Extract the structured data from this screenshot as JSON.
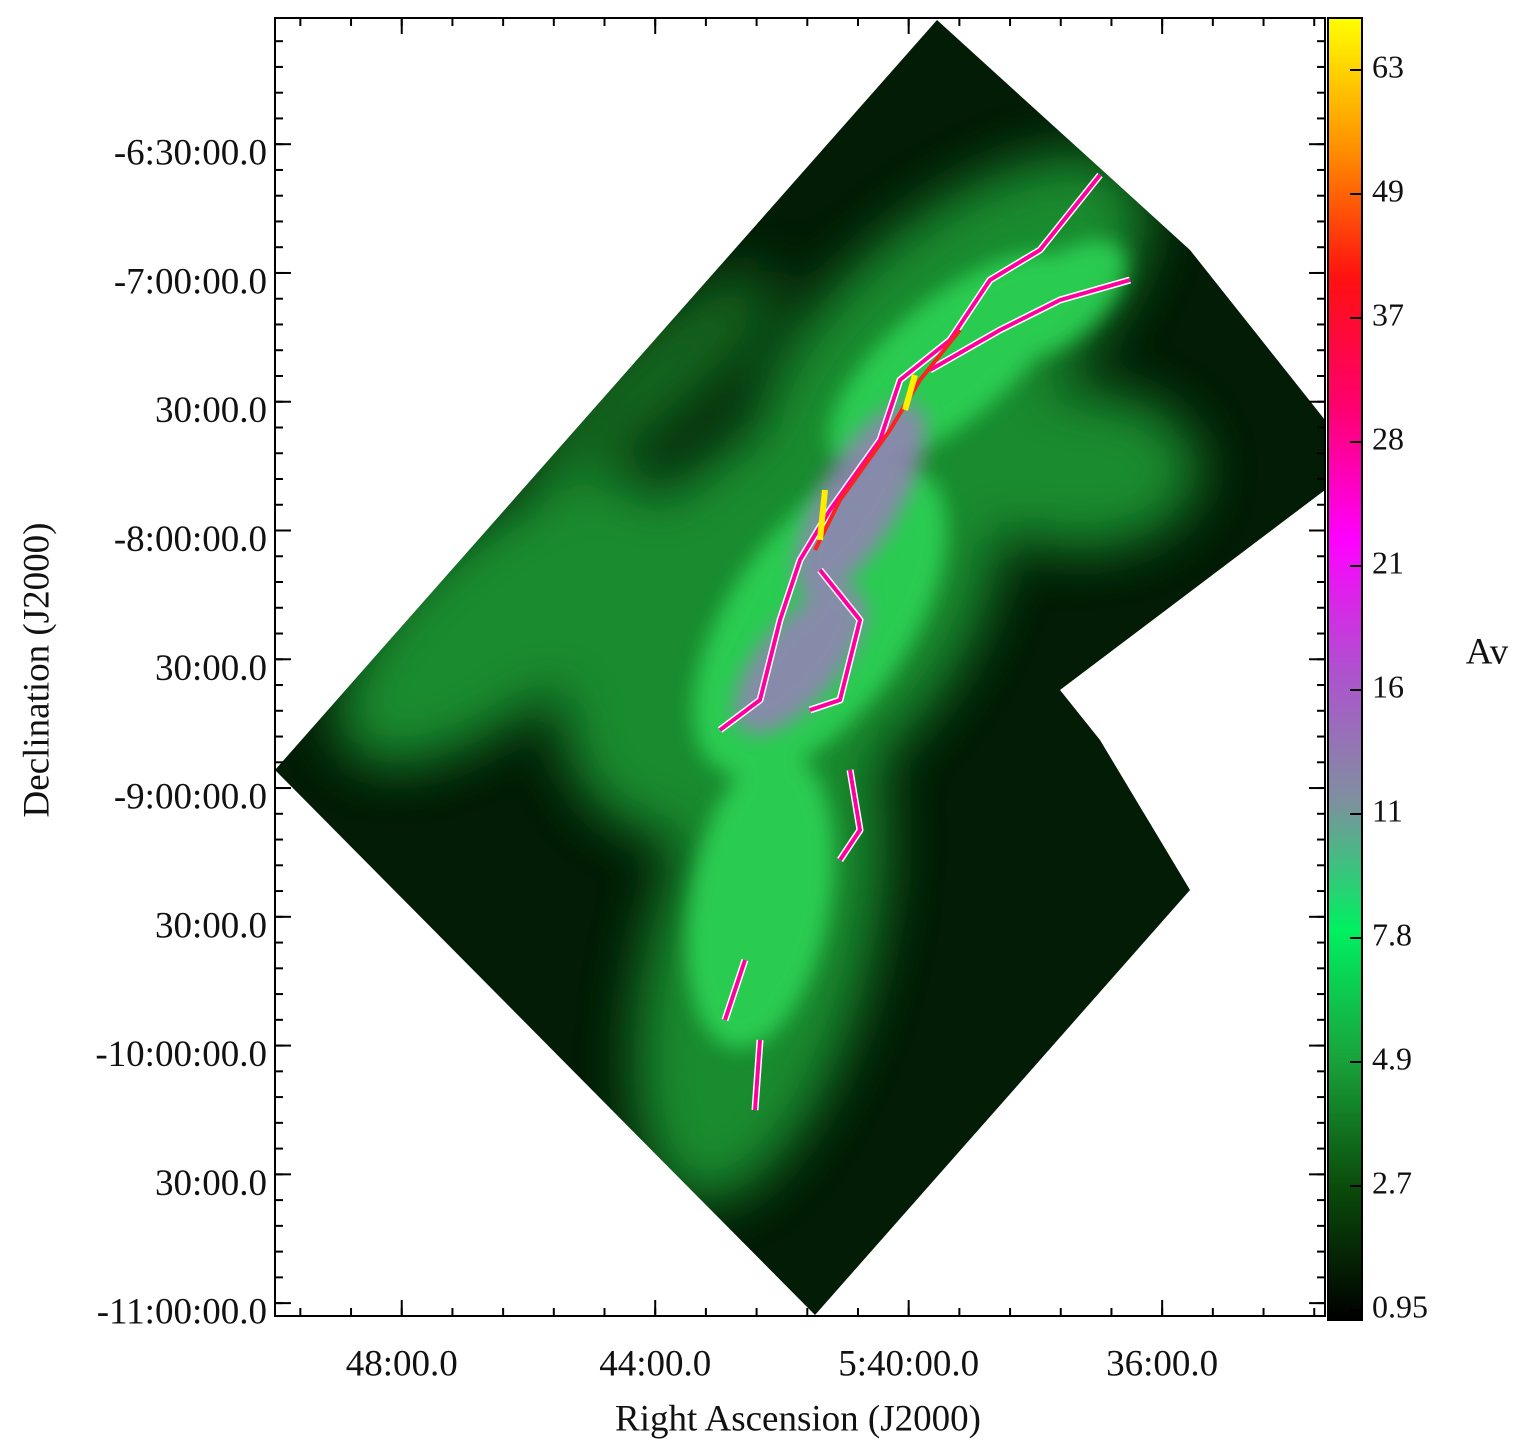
{
  "chart_data": {
    "type": "image",
    "xlabel": "Right Ascension (J2000)",
    "ylabel": "Declination (J2000)",
    "xlim": [
      350,
      333.43
    ],
    "ylim": [
      -11.05,
      -6.01
    ],
    "xticks": [
      {
        "value": 348,
        "label": "48:00.0"
      },
      {
        "value": 344,
        "label": "44:00.0"
      },
      {
        "value": 340,
        "label": "5:40:00.0"
      },
      {
        "value": 336,
        "label": "36:00.0"
      }
    ],
    "yticks": [
      {
        "value": -6.5,
        "label": "-6:30:00.0"
      },
      {
        "value": -7,
        "label": "-7:00:00.0"
      },
      {
        "value": -7.5,
        "label": "30:00.0"
      },
      {
        "value": -8,
        "label": "-8:00:00.0"
      },
      {
        "value": -8.5,
        "label": "30:00.0"
      },
      {
        "value": -9,
        "label": "-9:00:00.0"
      },
      {
        "value": -9.5,
        "label": "30:00.0"
      },
      {
        "value": -10,
        "label": "-10:00:00.0"
      },
      {
        "value": -10.5,
        "label": "30:00.0"
      },
      {
        "value": -11,
        "label": "-11:00:00.0"
      }
    ],
    "colorbar": {
      "label": "Av",
      "ticks": [
        0.95,
        2.7,
        4.9,
        7.8,
        11,
        16,
        21,
        28,
        37,
        49,
        63
      ],
      "colormap": [
        "#000000",
        "#0a4a0a",
        "#19a33a",
        "#00f060",
        "#7f8fa0",
        "#b050d0",
        "#ff00ff",
        "#ff0070",
        "#ff1010",
        "#ff9000",
        "#ffff00"
      ]
    }
  }
}
